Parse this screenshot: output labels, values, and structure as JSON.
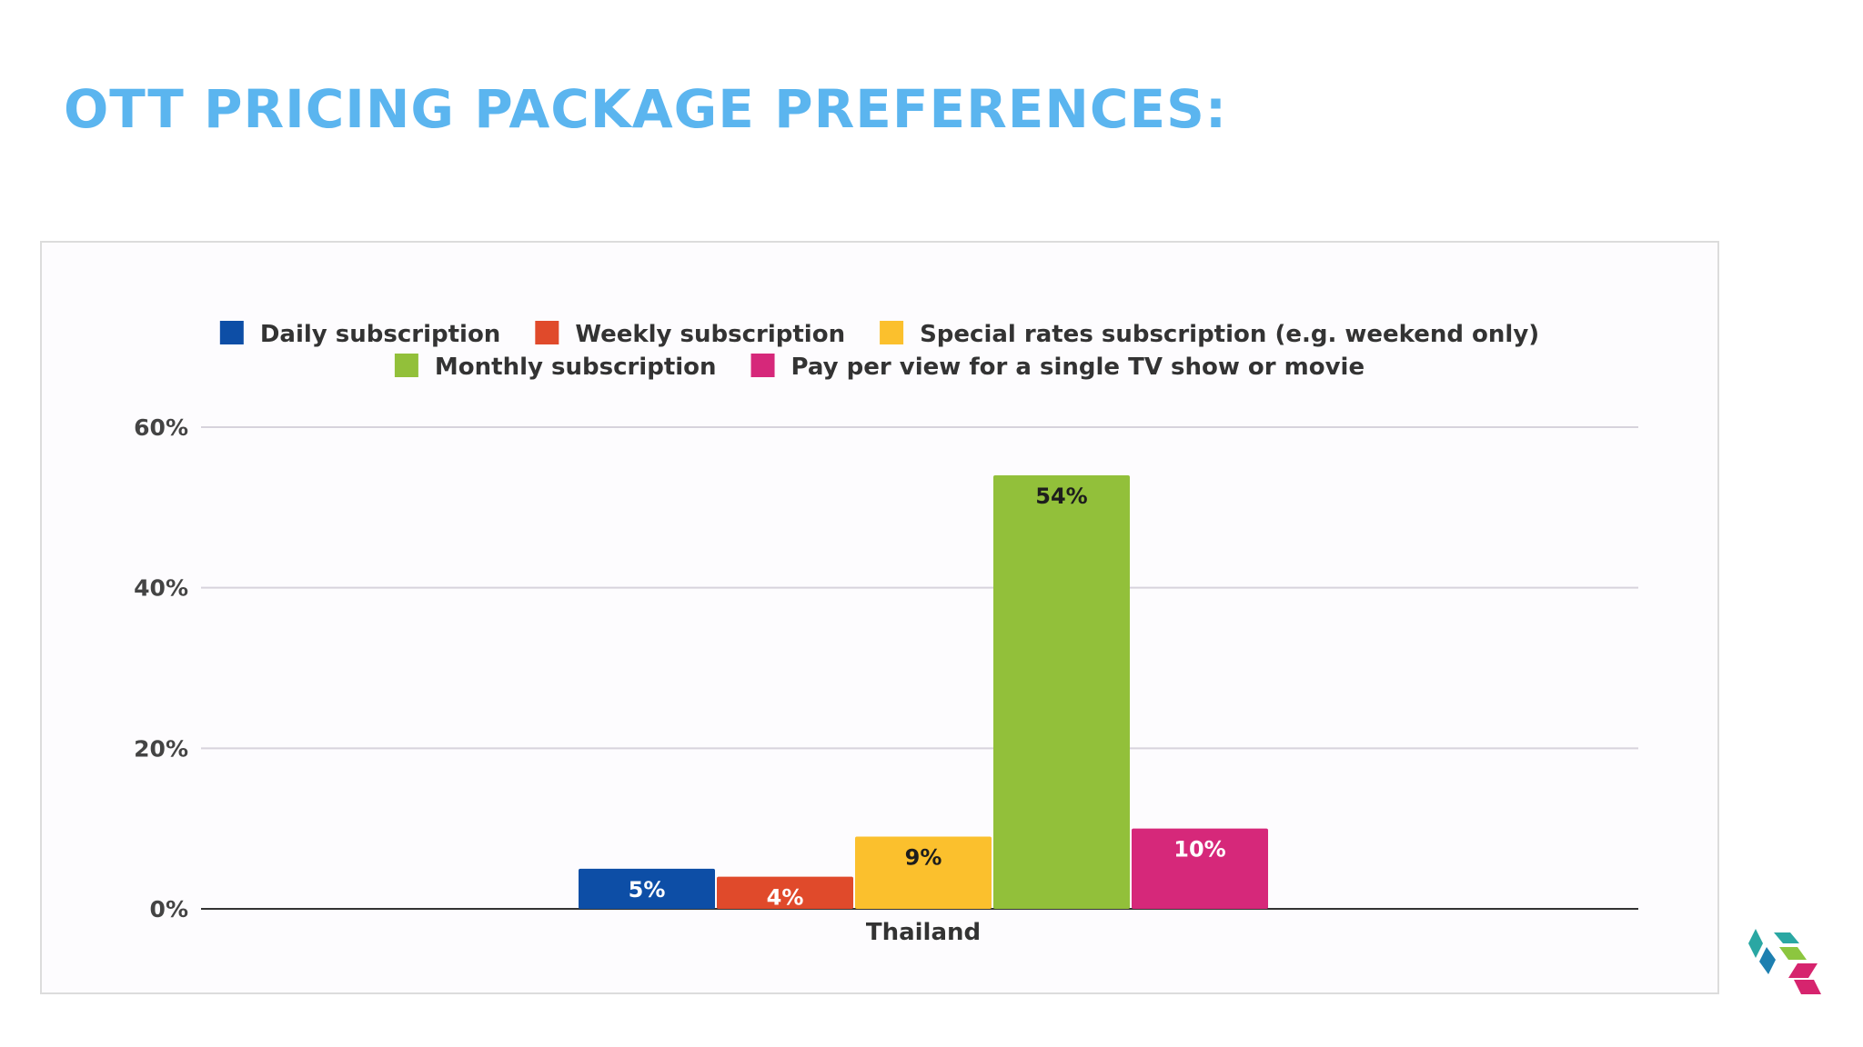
{
  "title": "OTT PRICING PACKAGE PREFERENCES:",
  "logo": {
    "icon": "colorful-cube-logo-icon",
    "colors": [
      "#2aa7a3",
      "#1d7fb0",
      "#8cc63f",
      "#d6246e"
    ]
  },
  "chart_data": {
    "type": "bar",
    "title": "",
    "xlabel": "",
    "ylabel": "",
    "categories": [
      "Thailand"
    ],
    "ylim": [
      0,
      60
    ],
    "yticks": [
      0,
      20,
      40,
      60
    ],
    "ytick_labels": [
      "0%",
      "20%",
      "40%",
      "60%"
    ],
    "grid": true,
    "legend_position": "top",
    "series": [
      {
        "name": "Daily subscription",
        "values": [
          5
        ],
        "labels": [
          "5%"
        ],
        "color": "#0d4ea6"
      },
      {
        "name": "Weekly subscription",
        "values": [
          4
        ],
        "labels": [
          "4%"
        ],
        "color": "#e04a2b"
      },
      {
        "name": "Special rates subscription (e.g. weekend only)",
        "values": [
          9
        ],
        "labels": [
          "9%"
        ],
        "color": "#fbc02d"
      },
      {
        "name": "Monthly subscription",
        "values": [
          54
        ],
        "labels": [
          "54%"
        ],
        "color": "#92c03a"
      },
      {
        "name": "Pay per view for a single TV show or movie",
        "values": [
          10
        ],
        "labels": [
          "10%"
        ],
        "color": "#d6287a"
      }
    ]
  }
}
